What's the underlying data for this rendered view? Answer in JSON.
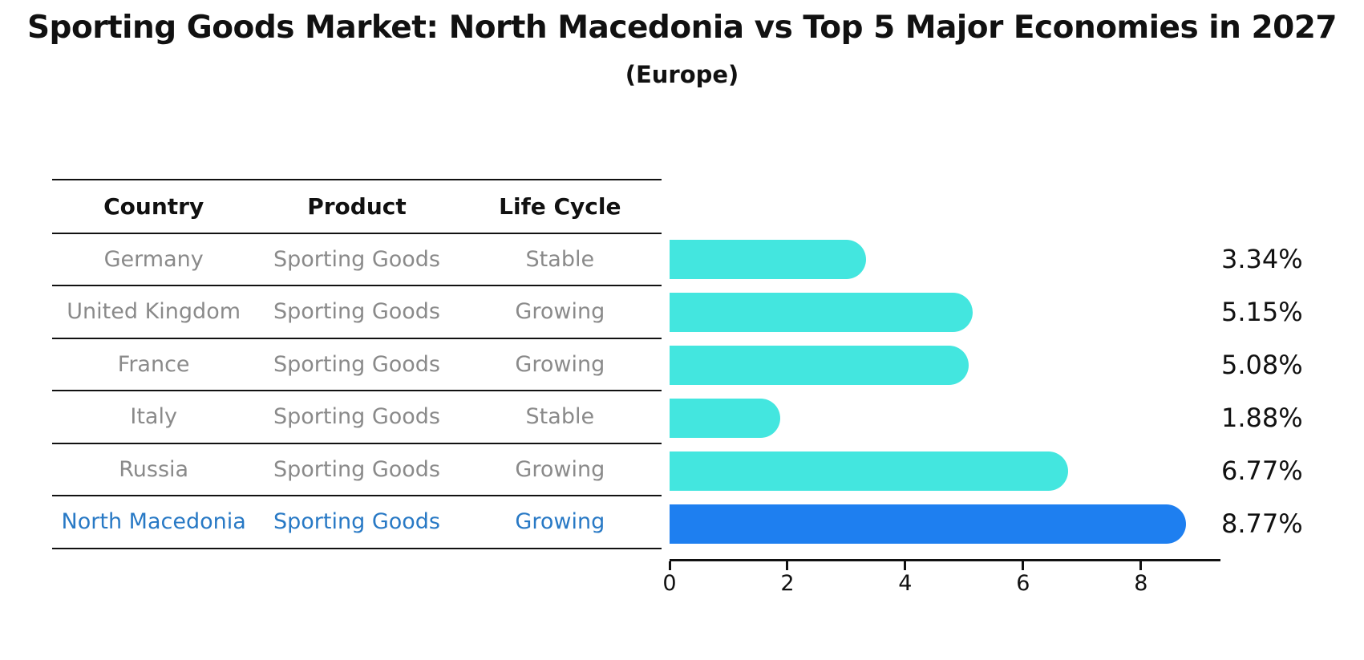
{
  "title": "Sporting Goods Market: North Macedonia vs Top 5 Major Economies in 2027",
  "subtitle": "(Europe)",
  "table": {
    "headers": [
      "Country",
      "Product",
      "Life Cycle"
    ],
    "rows": [
      {
        "country": "Germany",
        "product": "Sporting Goods",
        "life_cycle": "Stable",
        "highlight": false
      },
      {
        "country": "United Kingdom",
        "product": "Sporting Goods",
        "life_cycle": "Growing",
        "highlight": false
      },
      {
        "country": "France",
        "product": "Sporting Goods",
        "life_cycle": "Growing",
        "highlight": false
      },
      {
        "country": "Italy",
        "product": "Sporting Goods",
        "life_cycle": "Stable",
        "highlight": false
      },
      {
        "country": "Russia",
        "product": "Sporting Goods",
        "life_cycle": "Growing",
        "highlight": false
      },
      {
        "country": "North Macedonia",
        "product": "Sporting Goods",
        "life_cycle": "Growing",
        "highlight": true
      }
    ]
  },
  "chart_data": {
    "type": "bar",
    "orientation": "horizontal",
    "categories": [
      "Germany",
      "United Kingdom",
      "France",
      "Italy",
      "Russia",
      "North Macedonia"
    ],
    "values": [
      3.34,
      5.15,
      5.08,
      1.88,
      6.77,
      8.77
    ],
    "value_labels": [
      "3.34%",
      "5.15%",
      "5.08%",
      "1.88%",
      "6.77%",
      "8.77%"
    ],
    "xticks": [
      0,
      2,
      4,
      6,
      8
    ],
    "xtick_labels": [
      "0",
      "2",
      "4",
      "6",
      "8"
    ],
    "xlim": [
      0,
      9.35
    ],
    "grid": false,
    "legend": "none",
    "bar_color": "#43e6df",
    "highlight_color": "#1e7ff0",
    "highlight_border_color": "#5ca9f6",
    "highlight_index": 5,
    "highlight_text_color": "#2879c5"
  }
}
